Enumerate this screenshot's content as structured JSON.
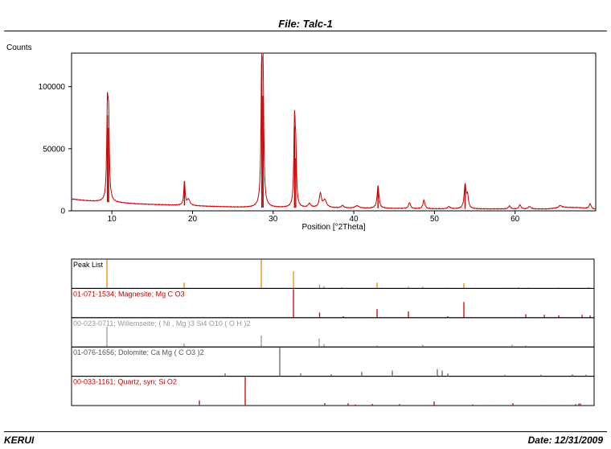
{
  "header": {
    "title": "File: Talc-1"
  },
  "footer": {
    "left": "KERUI",
    "right": "Date: 12/31/2009"
  },
  "colors": {
    "pattern": "#cc0000",
    "peaklist": "#f08c00",
    "magnesite": "#cc0000",
    "willemseite": "#999999",
    "dolomite": "#666666",
    "quartz": "#cc0000"
  },
  "chart_data": {
    "type": "line",
    "ylabel": "Counts",
    "xlabel": "Position [°2Theta]",
    "xlim": [
      5.0,
      70.0
    ],
    "ylim": [
      0,
      127000
    ],
    "x_ticks": [
      10,
      20,
      30,
      40,
      50,
      60
    ],
    "y_ticks": [
      0,
      50000,
      100000
    ],
    "series": [
      {
        "baseline": [
          [
            5.0,
            9500
          ],
          [
            6,
            8700
          ],
          [
            7,
            8000
          ],
          [
            8,
            7500
          ],
          [
            9,
            7200
          ],
          [
            11,
            6400
          ],
          [
            13,
            5600
          ],
          [
            15,
            5100
          ],
          [
            17,
            4700
          ],
          [
            19,
            4300
          ],
          [
            22,
            3600
          ],
          [
            25,
            3000
          ],
          [
            27,
            2700
          ],
          [
            29,
            2600
          ],
          [
            31,
            2500
          ],
          [
            34,
            2400
          ],
          [
            36,
            2600
          ],
          [
            38,
            2200
          ],
          [
            40,
            2000
          ],
          [
            43,
            2000
          ],
          [
            46,
            1800
          ],
          [
            49,
            1600
          ],
          [
            52,
            1500
          ],
          [
            55,
            1500
          ],
          [
            58,
            1500
          ],
          [
            61,
            1400
          ],
          [
            64,
            1500
          ],
          [
            66,
            2800
          ],
          [
            68,
            2500
          ],
          [
            70,
            1200
          ]
        ],
        "peaks": [
          {
            "x": 9.45,
            "h": 70000,
            "w": 0.1
          },
          {
            "x": 9.6,
            "h": 60000,
            "w": 0.1
          },
          {
            "x": 19.0,
            "h": 19000,
            "w": 0.1
          },
          {
            "x": 19.5,
            "h": 5000,
            "w": 0.2
          },
          {
            "x": 28.6,
            "h": 122000,
            "w": 0.1
          },
          {
            "x": 28.75,
            "h": 90000,
            "w": 0.1
          },
          {
            "x": 32.65,
            "h": 66000,
            "w": 0.1
          },
          {
            "x": 32.8,
            "h": 40000,
            "w": 0.1
          },
          {
            "x": 34.5,
            "h": 3000,
            "w": 0.2
          },
          {
            "x": 35.85,
            "h": 11000,
            "w": 0.15
          },
          {
            "x": 36.4,
            "h": 6000,
            "w": 0.25
          },
          {
            "x": 38.6,
            "h": 2000,
            "w": 0.2
          },
          {
            "x": 40.4,
            "h": 2000,
            "w": 0.3
          },
          {
            "x": 43.0,
            "h": 18000,
            "w": 0.14
          },
          {
            "x": 46.9,
            "h": 5000,
            "w": 0.14
          },
          {
            "x": 48.7,
            "h": 7000,
            "w": 0.14
          },
          {
            "x": 51.8,
            "h": 1800,
            "w": 0.2
          },
          {
            "x": 53.8,
            "h": 19000,
            "w": 0.14
          },
          {
            "x": 54.1,
            "h": 10000,
            "w": 0.14
          },
          {
            "x": 59.3,
            "h": 2500,
            "w": 0.14
          },
          {
            "x": 60.6,
            "h": 3500,
            "w": 0.14
          },
          {
            "x": 61.8,
            "h": 2000,
            "w": 0.2
          },
          {
            "x": 65.6,
            "h": 1800,
            "w": 0.2
          },
          {
            "x": 69.3,
            "h": 4000,
            "w": 0.15
          }
        ]
      }
    ],
    "reference_panels": [
      {
        "label": "Peak List",
        "color_key": "peaklist",
        "label_color": "#000000",
        "sticks": [
          [
            9.4,
            1.0
          ],
          [
            19.0,
            0.2
          ],
          [
            28.6,
            1.0
          ],
          [
            32.6,
            0.6
          ],
          [
            35.85,
            0.14
          ],
          [
            36.4,
            0.08
          ],
          [
            38.6,
            0.04
          ],
          [
            43.0,
            0.2
          ],
          [
            46.9,
            0.06
          ],
          [
            48.7,
            0.06
          ],
          [
            51.8,
            0.03
          ],
          [
            53.8,
            0.18
          ],
          [
            59.3,
            0.03
          ],
          [
            60.6,
            0.04
          ],
          [
            61.8,
            0.03
          ],
          [
            65.6,
            0.03
          ],
          [
            69.3,
            0.05
          ]
        ]
      },
      {
        "label": "01-071-1534; Magnesite; Mg C O3",
        "color_key": "magnesite",
        "label_color": "#cc0000",
        "sticks": [
          [
            32.6,
            1.0
          ],
          [
            35.85,
            0.18
          ],
          [
            38.8,
            0.05
          ],
          [
            43.0,
            0.3
          ],
          [
            46.9,
            0.22
          ],
          [
            51.8,
            0.05
          ],
          [
            53.8,
            0.55
          ],
          [
            61.5,
            0.12
          ],
          [
            63.8,
            0.1
          ],
          [
            65.6,
            0.08
          ],
          [
            68.5,
            0.1
          ],
          [
            69.5,
            0.08
          ]
        ]
      },
      {
        "label": "00-023-0711; Willemseite; ( Ni , Mg )3 Si4 O10 ( O H )2",
        "color_key": "willemseite",
        "label_color": "#999999",
        "sticks": [
          [
            9.4,
            0.7
          ],
          [
            19.0,
            0.12
          ],
          [
            28.6,
            0.4
          ],
          [
            35.8,
            0.3
          ],
          [
            36.4,
            0.1
          ],
          [
            43.0,
            0.05
          ],
          [
            48.7,
            0.08
          ],
          [
            59.8,
            0.08
          ],
          [
            61.5,
            0.05
          ]
        ]
      },
      {
        "label": "01-076-1656; Dolomite; Ca Mg ( C O3 )2",
        "color_key": "dolomite",
        "label_color": "#555555",
        "sticks": [
          [
            30.9,
            1.0
          ],
          [
            24.1,
            0.1
          ],
          [
            33.5,
            0.1
          ],
          [
            37.3,
            0.07
          ],
          [
            41.1,
            0.15
          ],
          [
            44.9,
            0.2
          ],
          [
            50.5,
            0.25
          ],
          [
            51.1,
            0.2
          ],
          [
            51.8,
            0.1
          ],
          [
            58.9,
            0.05
          ],
          [
            63.4,
            0.05
          ],
          [
            67.3,
            0.07
          ],
          [
            69.0,
            0.05
          ]
        ]
      },
      {
        "label": "00-033-1161; Quartz, syn; Si O2",
        "color_key": "quartz",
        "label_color": "#cc0000",
        "sticks": [
          [
            20.9,
            0.18
          ],
          [
            26.6,
            1.0
          ],
          [
            36.5,
            0.08
          ],
          [
            39.4,
            0.08
          ],
          [
            40.3,
            0.04
          ],
          [
            42.4,
            0.06
          ],
          [
            45.8,
            0.05
          ],
          [
            50.1,
            0.14
          ],
          [
            54.9,
            0.04
          ],
          [
            55.3,
            0.02
          ],
          [
            57.2,
            0.02
          ],
          [
            59.9,
            0.08
          ],
          [
            64.0,
            0.02
          ],
          [
            65.8,
            0.02
          ],
          [
            67.7,
            0.05
          ],
          [
            68.1,
            0.07
          ],
          [
            68.3,
            0.07
          ]
        ]
      }
    ]
  }
}
